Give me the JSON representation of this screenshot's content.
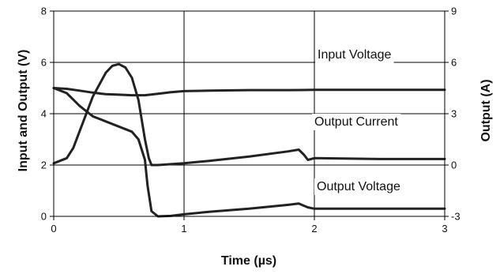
{
  "chart_data": {
    "type": "line",
    "title": "",
    "xlabel": "Time (µs)",
    "ylabel_left": "Input and Output  (V)",
    "ylabel_right": "Output (A)",
    "xlim": [
      0,
      3
    ],
    "ylim_left": [
      0,
      8
    ],
    "ylim_right": [
      -3,
      9
    ],
    "x_ticks": [
      0,
      1,
      2,
      3
    ],
    "x_tick_labels": [
      "0",
      "1",
      "2",
      "3"
    ],
    "y_left_ticks": [
      0,
      2,
      4,
      6,
      8
    ],
    "y_left_tick_labels": [
      "0",
      "2",
      "4",
      "6",
      "8"
    ],
    "y_right_ticks": [
      -3,
      0,
      3,
      6,
      9
    ],
    "y_right_tick_labels": [
      "-3",
      "0",
      "3",
      "6",
      "9"
    ],
    "grid": true,
    "legend": "none",
    "annotations": [
      {
        "text": "Input Voltage",
        "series": "Input Voltage"
      },
      {
        "text": "Output Current",
        "series": "Output Current"
      },
      {
        "text": "Output Voltage",
        "series": "Output Voltage"
      }
    ],
    "series": [
      {
        "name": "Input Voltage",
        "axis": "left",
        "color": "#222222",
        "x": [
          0,
          0.1,
          0.2,
          0.3,
          0.4,
          0.5,
          0.6,
          0.7,
          0.8,
          0.9,
          1.0,
          1.2,
          1.5,
          1.8,
          2.0,
          2.5,
          3.0
        ],
        "y": [
          5.0,
          4.97,
          4.9,
          4.82,
          4.76,
          4.74,
          4.72,
          4.72,
          4.78,
          4.84,
          4.88,
          4.9,
          4.92,
          4.92,
          4.93,
          4.93,
          4.93
        ]
      },
      {
        "name": "Output Current",
        "axis": "right",
        "color": "#222222",
        "x": [
          0,
          0.1,
          0.15,
          0.2,
          0.3,
          0.4,
          0.45,
          0.5,
          0.55,
          0.6,
          0.65,
          0.7,
          0.73,
          0.75,
          0.8,
          0.9,
          1.0,
          1.2,
          1.5,
          1.8,
          1.88,
          1.92,
          1.95,
          2.0,
          2.5,
          3.0
        ],
        "y": [
          0.1,
          0.4,
          1.0,
          2.0,
          4.0,
          5.4,
          5.8,
          5.9,
          5.7,
          5.1,
          3.8,
          1.5,
          0.4,
          0.0,
          0.0,
          0.05,
          0.1,
          0.25,
          0.5,
          0.8,
          0.9,
          0.6,
          0.3,
          0.4,
          0.35,
          0.35
        ]
      },
      {
        "name": "Output Voltage",
        "axis": "left",
        "color": "#222222",
        "x": [
          0,
          0.1,
          0.2,
          0.3,
          0.4,
          0.5,
          0.6,
          0.65,
          0.7,
          0.72,
          0.75,
          0.8,
          0.9,
          1.0,
          1.2,
          1.5,
          1.8,
          1.88,
          1.95,
          2.0,
          2.5,
          3.0
        ],
        "y": [
          5.0,
          4.8,
          4.3,
          3.9,
          3.7,
          3.5,
          3.3,
          3.0,
          2.2,
          1.2,
          0.2,
          0.0,
          0.02,
          0.08,
          0.18,
          0.3,
          0.45,
          0.5,
          0.35,
          0.3,
          0.3,
          0.3
        ]
      }
    ]
  }
}
